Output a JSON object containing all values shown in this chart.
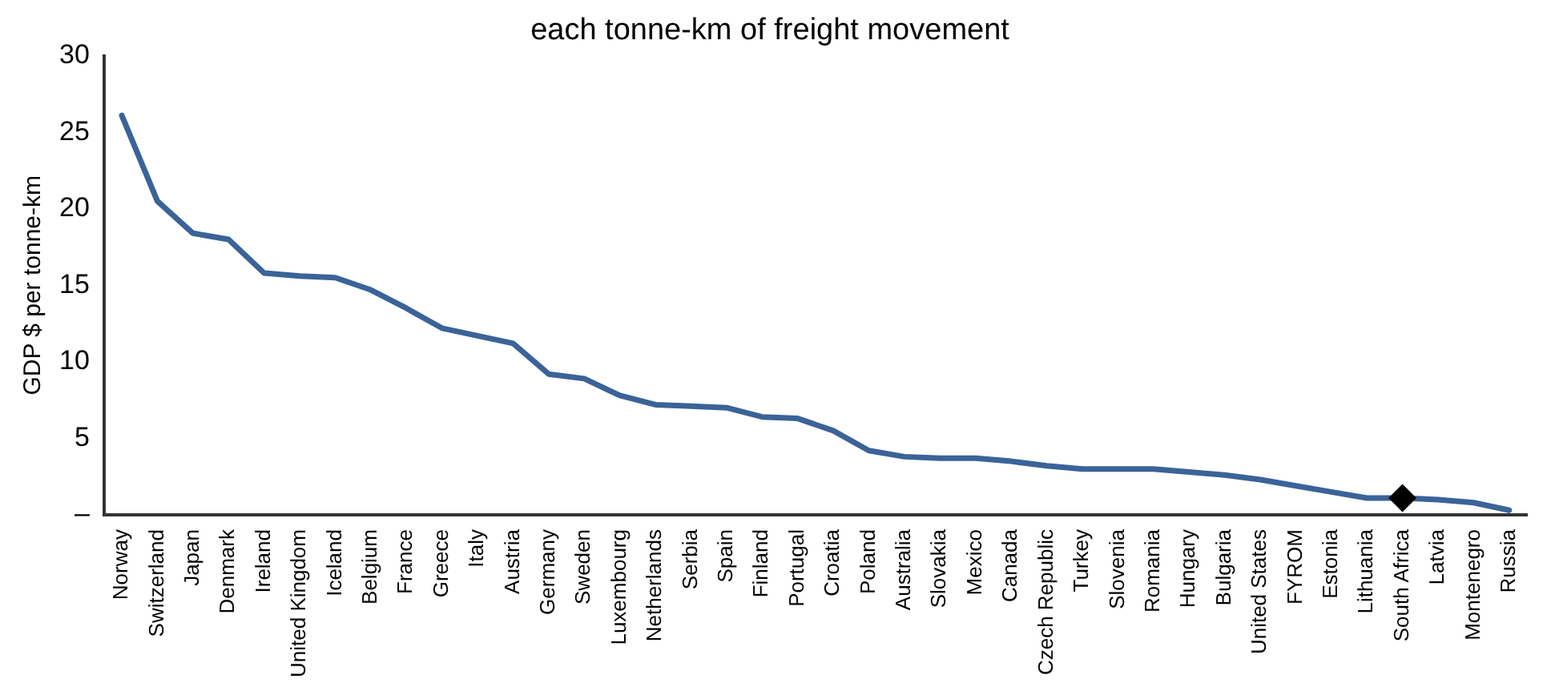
{
  "chart_data": {
    "type": "line",
    "title": "each tonne-km of freight movement",
    "ylabel": "GDP $ per tonne-km",
    "categories": [
      "Norway",
      "Switzerland",
      "Japan",
      "Denmark",
      "Ireland",
      "United Kingdom",
      "Iceland",
      "Belgium",
      "France",
      "Greece",
      "Italy",
      "Austria",
      "Germany",
      "Sweden",
      "Luxembourg",
      "Netherlands",
      "Serbia",
      "Spain",
      "Finland",
      "Portugal",
      "Croatia",
      "Poland",
      "Australia",
      "Slovakia",
      "Mexico",
      "Canada",
      "Czech Republic",
      "Turkey",
      "Slovenia",
      "Romania",
      "Hungary",
      "Bulgaria",
      "United States",
      "FYROM",
      "Estonia",
      "Lithuania",
      "South Africa",
      "Latvia",
      "Montenegro",
      "Russia"
    ],
    "series": [
      {
        "type": "line",
        "color": "#3a6398",
        "marker": "none",
        "values": [
          26.1,
          20.5,
          18.4,
          18.0,
          15.8,
          15.6,
          15.5,
          14.7,
          13.5,
          12.2,
          11.7,
          11.2,
          9.2,
          8.9,
          7.8,
          7.2,
          7.1,
          7.0,
          6.4,
          6.3,
          5.5,
          4.2,
          3.8,
          3.7,
          3.7,
          3.5,
          3.2,
          3.0,
          3.0,
          3.0,
          2.8,
          2.6,
          2.3,
          1.9,
          1.5,
          1.1,
          1.1,
          1.0,
          0.8,
          0.3
        ]
      },
      {
        "type": "scatter",
        "color": "#000000",
        "marker": "diamond",
        "x": [
          "South Africa"
        ],
        "values": [
          1.1
        ]
      }
    ],
    "ylim": [
      0,
      30
    ],
    "yticks": [
      {
        "value": 0,
        "label": "–"
      },
      5,
      10,
      15,
      20,
      25,
      30
    ],
    "grid": false,
    "legend": false,
    "line_style": "solid"
  }
}
